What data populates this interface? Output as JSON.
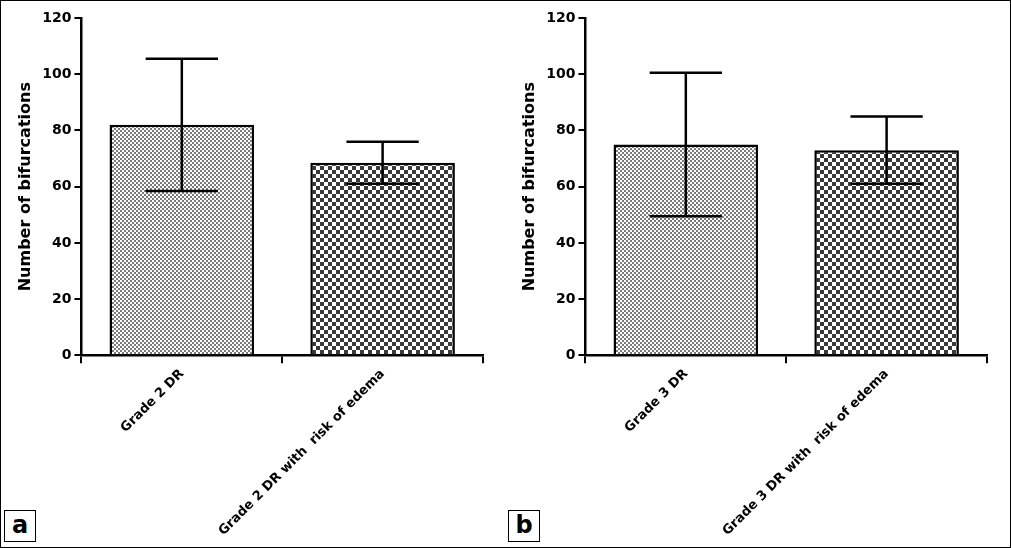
{
  "chart_data": [
    {
      "type": "bar",
      "annotations": [
        "a"
      ],
      "y_label": "Number of bifurcations",
      "categories": [
        "Grade 2 DR",
        "Grade 2 DR with  risk of edema"
      ],
      "values": [
        82,
        68.5
      ],
      "errors": [
        23.5,
        7.5
      ],
      "colors": [
        "#7a7a7a",
        "#3a3a3a"
      ],
      "ylim": [
        0,
        120
      ],
      "yticks": [
        0,
        20,
        40,
        60,
        80,
        100,
        120
      ],
      "grid": false
    },
    {
      "type": "bar",
      "annotations": [
        "b"
      ],
      "y_label": "Number of bifurcations",
      "categories": [
        "Grade 3 DR",
        "Grade 3 DR with  risk of edema"
      ],
      "values": [
        75,
        73
      ],
      "errors": [
        25.5,
        12
      ],
      "colors": [
        "#7a7a7a",
        "#3a3a3a"
      ],
      "ylim": [
        0,
        120
      ],
      "yticks": [
        0,
        20,
        40,
        60,
        80,
        100,
        120
      ],
      "grid": false
    }
  ]
}
